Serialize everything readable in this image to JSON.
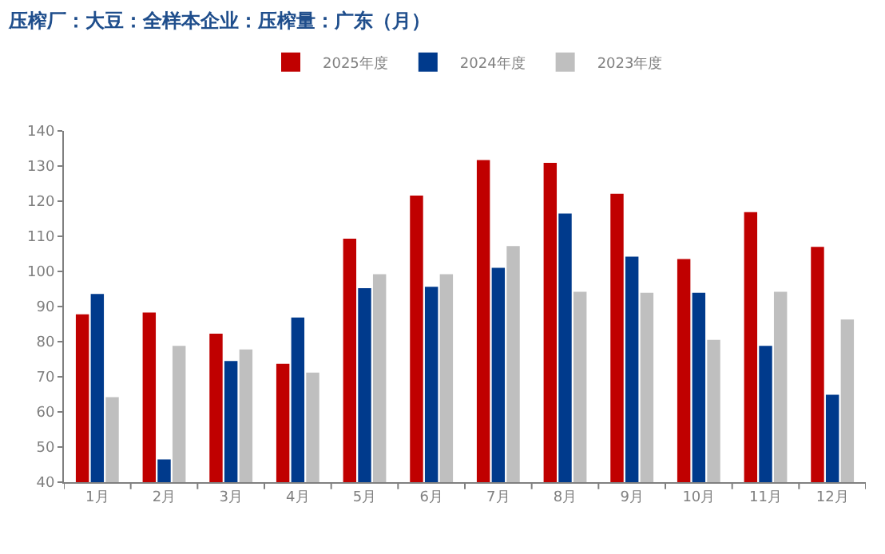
{
  "chart_data": {
    "type": "bar",
    "title": "压榨厂：大豆：全样本企业：压榨量：广东（月）",
    "categories": [
      "1月",
      "2月",
      "3月",
      "4月",
      "5月",
      "6月",
      "7月",
      "8月",
      "9月",
      "10月",
      "11月",
      "12月"
    ],
    "series": [
      {
        "name": "2025年度",
        "color": "#c00000",
        "values": [
          87.8,
          88.3,
          82.3,
          73.7,
          109.3,
          121.6,
          131.7,
          130.9,
          122.1,
          103.5,
          116.9,
          107.0
        ]
      },
      {
        "name": "2024年度",
        "color": "#003a8c",
        "values": [
          93.6,
          46.5,
          74.5,
          86.9,
          95.2,
          95.6,
          101.0,
          116.5,
          104.2,
          93.9,
          78.8,
          64.9
        ]
      },
      {
        "name": "2023年度",
        "color": "#bfbfbf",
        "values": [
          64.2,
          78.8,
          77.8,
          71.2,
          99.2,
          99.2,
          107.2,
          94.2,
          93.9,
          80.5,
          94.2,
          86.3
        ]
      }
    ],
    "ylim": [
      40,
      140
    ],
    "yticks": [
      40,
      50,
      60,
      70,
      80,
      90,
      100,
      110,
      120,
      130,
      140
    ],
    "legend": "top"
  }
}
